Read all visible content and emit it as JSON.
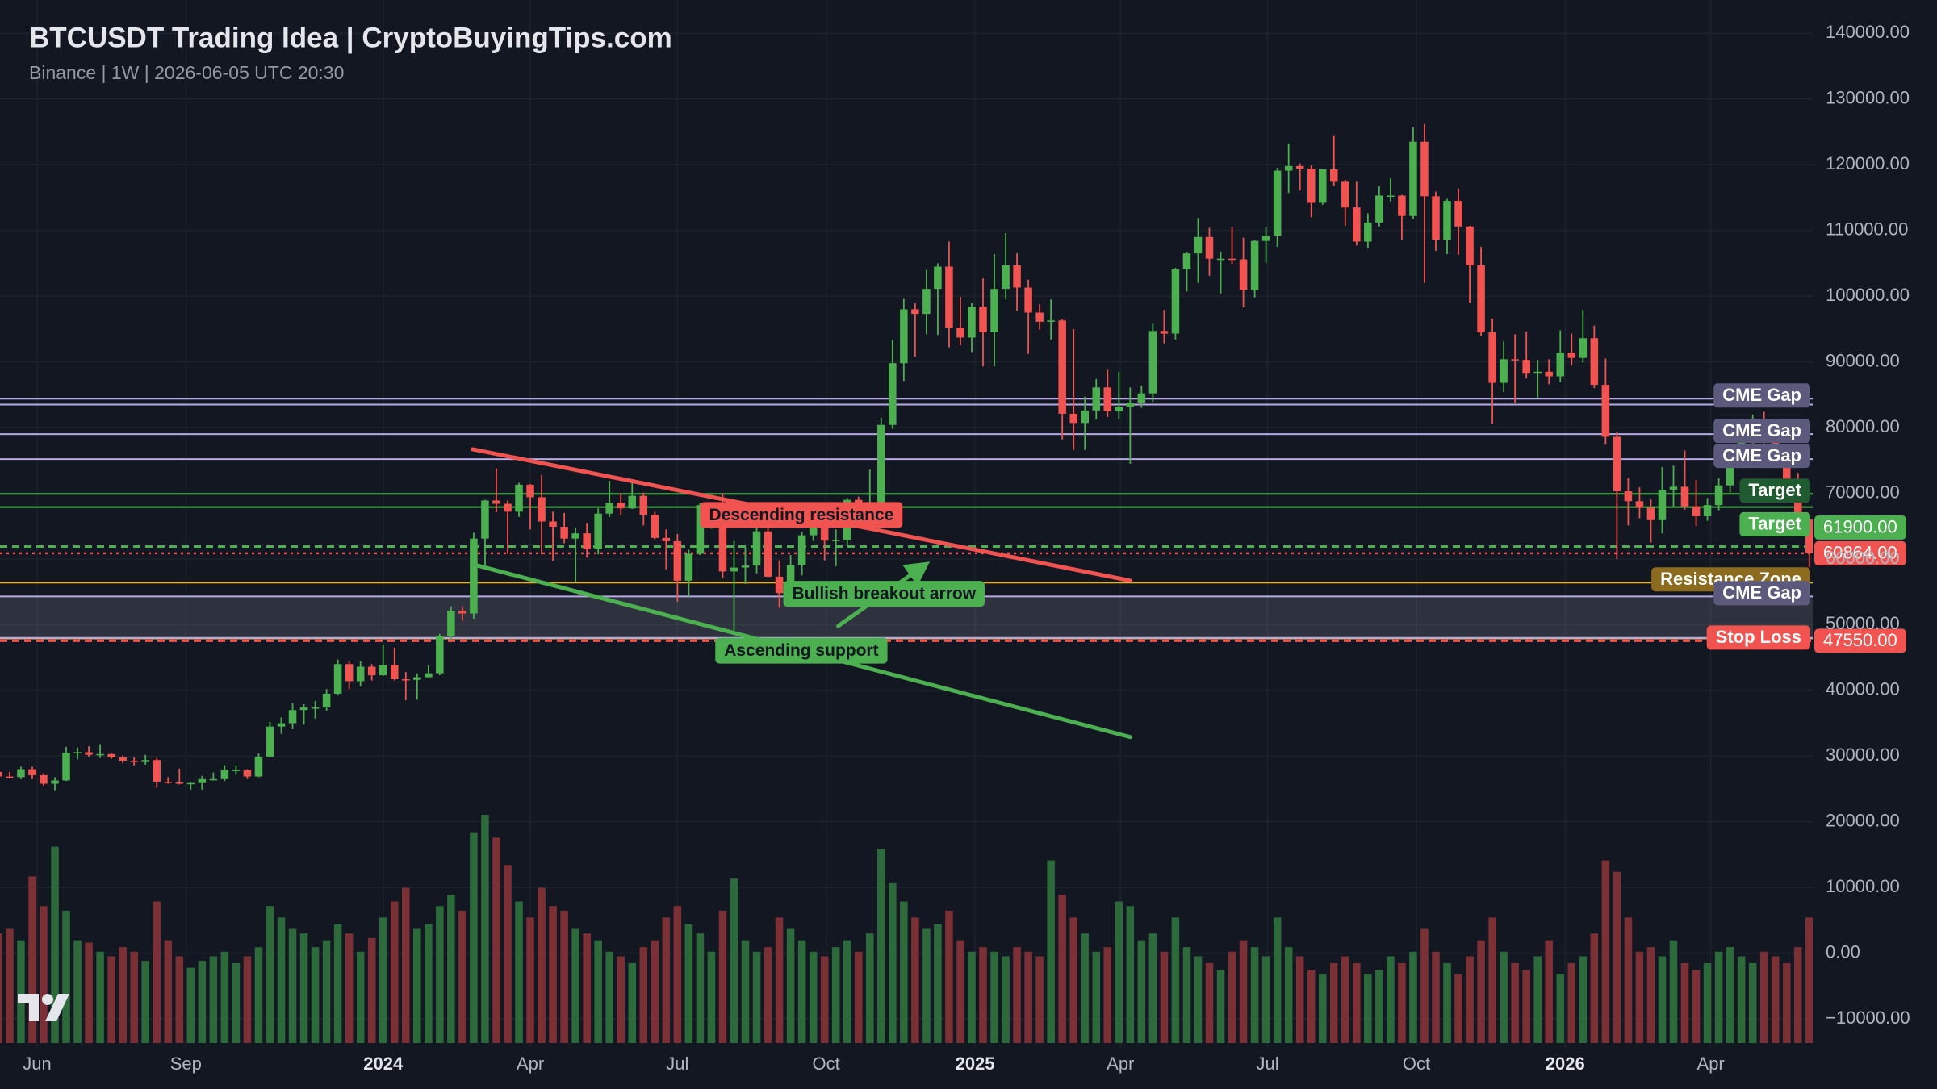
{
  "chart_data": {
    "type": "candlestick",
    "title": "BTCUSDT Trading Idea | CryptoBuyingTips.com",
    "subtitle": "Binance | 1W | 2026-06-05 UTC 20:30",
    "up_color": "#4caf50",
    "down_color": "#f05350",
    "volume_up_color": "#2c6a3c",
    "volume_down_color": "#7a3034",
    "grid": true,
    "xlim": [
      0.15,
      160.3
    ],
    "xticks": [
      {
        "value": 3.43,
        "label": "Jun"
      },
      {
        "value": 16.57,
        "label": "Sep"
      },
      {
        "value": 34.0,
        "label": "2024"
      },
      {
        "value": 47.0,
        "label": "Apr"
      },
      {
        "value": 60.0,
        "label": "Jul"
      },
      {
        "value": 73.14,
        "label": "Oct"
      },
      {
        "value": 86.29,
        "label": "2025"
      },
      {
        "value": 99.14,
        "label": "Apr"
      },
      {
        "value": 112.14,
        "label": "Jul"
      },
      {
        "value": 125.29,
        "label": "Oct"
      },
      {
        "value": 138.43,
        "label": "2026"
      },
      {
        "value": 151.29,
        "label": "Apr"
      }
    ],
    "ylim": [
      -14280,
      145070
    ],
    "yticks": [
      {
        "value": 140000,
        "label": "140000.00"
      },
      {
        "value": 130000,
        "label": "130000.00"
      },
      {
        "value": 120000,
        "label": "120000.00"
      },
      {
        "value": 110000,
        "label": "110000.00"
      },
      {
        "value": 100000,
        "label": "100000.00"
      },
      {
        "value": 90000,
        "label": "90000.00"
      },
      {
        "value": 80000,
        "label": "80000.00"
      },
      {
        "value": 70000,
        "label": "70000.00"
      },
      {
        "value": 60000,
        "label": "60000.00"
      },
      {
        "value": 50000,
        "label": "50000.00"
      },
      {
        "value": 40000,
        "label": "40000.00"
      },
      {
        "value": 30000,
        "label": "30000.00"
      },
      {
        "value": 20000,
        "label": "20000.00"
      },
      {
        "value": 10000,
        "label": "10000.00"
      },
      {
        "value": 0,
        "label": "0.00"
      },
      {
        "value": -10000,
        "label": "−10000.00"
      }
    ],
    "candles": [
      [
        27600,
        28000,
        25800,
        26900
      ],
      [
        26900,
        27600,
        26600,
        26800
      ],
      [
        26800,
        28400,
        26500,
        28000
      ],
      [
        28000,
        28400,
        26500,
        27100
      ],
      [
        27100,
        27400,
        25400,
        25800
      ],
      [
        25800,
        26800,
        24800,
        26300
      ],
      [
        26300,
        31400,
        26200,
        30500
      ],
      [
        30500,
        31300,
        29500,
        30600
      ],
      [
        30600,
        31500,
        29900,
        30200
      ],
      [
        30200,
        31800,
        29700,
        30300
      ],
      [
        30300,
        30400,
        29600,
        29800
      ],
      [
        29800,
        30100,
        28900,
        29300
      ],
      [
        29300,
        29800,
        28600,
        29100
      ],
      [
        29100,
        30200,
        28700,
        29400
      ],
      [
        29400,
        29700,
        25200,
        26100
      ],
      [
        26100,
        26800,
        25800,
        26000
      ],
      [
        26000,
        28100,
        25700,
        25800
      ],
      [
        25800,
        26100,
        24900,
        25900
      ],
      [
        25900,
        27000,
        24900,
        26500
      ],
      [
        26500,
        27500,
        26300,
        26500
      ],
      [
        26500,
        28600,
        26200,
        27900
      ],
      [
        27900,
        28600,
        27200,
        27900
      ],
      [
        27900,
        28000,
        26500,
        26900
      ],
      [
        26900,
        30400,
        26800,
        29900
      ],
      [
        29900,
        35200,
        29800,
        34500
      ],
      [
        34500,
        35900,
        33400,
        35000
      ],
      [
        35000,
        38000,
        34100,
        37000
      ],
      [
        37000,
        37900,
        34800,
        37400
      ],
      [
        37400,
        38400,
        35700,
        37400
      ],
      [
        37400,
        40200,
        36900,
        39500
      ],
      [
        39500,
        44700,
        39300,
        44000
      ],
      [
        44000,
        44400,
        40200,
        41400
      ],
      [
        41400,
        44400,
        40600,
        43600
      ],
      [
        43600,
        44000,
        41500,
        42300
      ],
      [
        42300,
        47000,
        42200,
        43900
      ],
      [
        43900,
        46500,
        41500,
        41700
      ],
      [
        41700,
        42800,
        38500,
        41600
      ],
      [
        41600,
        42600,
        38600,
        42000
      ],
      [
        42000,
        43800,
        41900,
        42600
      ],
      [
        42600,
        48600,
        42300,
        48300
      ],
      [
        48300,
        52800,
        47700,
        52100
      ],
      [
        52100,
        52800,
        50600,
        51700
      ],
      [
        51700,
        64000,
        50900,
        63100
      ],
      [
        63100,
        69000,
        59000,
        68900
      ],
      [
        68900,
        73800,
        67100,
        68400
      ],
      [
        68400,
        68900,
        60800,
        67200
      ],
      [
        67200,
        71600,
        66400,
        71300
      ],
      [
        71300,
        71400,
        64500,
        69400
      ],
      [
        69400,
        72800,
        60700,
        65700
      ],
      [
        65700,
        67200,
        59700,
        64900
      ],
      [
        64900,
        67000,
        62400,
        63100
      ],
      [
        63100,
        64800,
        56500,
        63900
      ],
      [
        63900,
        65500,
        60200,
        61500
      ],
      [
        61500,
        67700,
        60700,
        66900
      ],
      [
        66900,
        71900,
        66400,
        68500
      ],
      [
        68500,
        70000,
        66700,
        67700
      ],
      [
        67700,
        71900,
        67600,
        69600
      ],
      [
        69600,
        70100,
        65100,
        66700
      ],
      [
        66700,
        67200,
        63000,
        63200
      ],
      [
        63200,
        64500,
        58400,
        62700
      ],
      [
        62700,
        63800,
        53500,
        56700
      ],
      [
        56700,
        61400,
        54300,
        60800
      ],
      [
        60800,
        68500,
        60600,
        68200
      ],
      [
        68200,
        68500,
        64600,
        68200
      ],
      [
        68200,
        70000,
        57100,
        58100
      ],
      [
        58100,
        62700,
        49100,
        58700
      ],
      [
        58700,
        61800,
        56200,
        59000
      ],
      [
        59000,
        65000,
        57800,
        64200
      ],
      [
        64200,
        64900,
        57200,
        57300
      ],
      [
        57300,
        59800,
        52600,
        54800
      ],
      [
        54800,
        60600,
        53600,
        59100
      ],
      [
        59100,
        64100,
        57500,
        63600
      ],
      [
        63600,
        66500,
        62700,
        65600
      ],
      [
        65600,
        66000,
        59800,
        62800
      ],
      [
        62800,
        64500,
        58900,
        62900
      ],
      [
        62900,
        69300,
        62000,
        69000
      ],
      [
        69000,
        69500,
        65100,
        68000
      ],
      [
        68000,
        73600,
        67500,
        68200
      ],
      [
        68200,
        81500,
        66800,
        80400
      ],
      [
        80400,
        93400,
        79800,
        89800
      ],
      [
        89800,
        99600,
        87100,
        98000
      ],
      [
        98000,
        98900,
        90800,
        97300
      ],
      [
        97300,
        104000,
        94200,
        101100
      ],
      [
        101100,
        105000,
        94100,
        104500
      ],
      [
        104500,
        108300,
        92200,
        95200
      ],
      [
        95200,
        99900,
        92500,
        93700
      ],
      [
        93700,
        98900,
        91500,
        98400
      ],
      [
        98400,
        102700,
        89300,
        94500
      ],
      [
        94500,
        106400,
        89300,
        101100
      ],
      [
        101100,
        109600,
        99500,
        104700
      ],
      [
        104700,
        106500,
        97800,
        101300
      ],
      [
        101300,
        102500,
        91200,
        97500
      ],
      [
        97500,
        98800,
        94900,
        96100
      ],
      [
        96100,
        99500,
        93400,
        96300
      ],
      [
        96300,
        96500,
        78200,
        82100
      ],
      [
        82100,
        95000,
        76600,
        80700
      ],
      [
        80700,
        84700,
        76600,
        82600
      ],
      [
        82600,
        87400,
        81200,
        86100
      ],
      [
        86100,
        88800,
        81600,
        82500
      ],
      [
        82500,
        88500,
        81300,
        83200
      ],
      [
        83200,
        86100,
        74500,
        83800
      ],
      [
        83800,
        86400,
        83000,
        85200
      ],
      [
        85200,
        95800,
        83900,
        94700
      ],
      [
        94700,
        97900,
        92800,
        94300
      ],
      [
        94300,
        104300,
        93400,
        104100
      ],
      [
        104100,
        106700,
        100700,
        106500
      ],
      [
        106500,
        111900,
        102000,
        109000
      ],
      [
        109000,
        110400,
        103100,
        105700
      ],
      [
        105700,
        106800,
        100400,
        105700
      ],
      [
        105700,
        110500,
        104900,
        105600
      ],
      [
        105600,
        108900,
        98300,
        100900
      ],
      [
        100900,
        108500,
        99800,
        108400
      ],
      [
        108400,
        110500,
        105100,
        109200
      ],
      [
        109200,
        119500,
        107500,
        119100
      ],
      [
        119100,
        123200,
        115700,
        119800
      ],
      [
        119800,
        120200,
        116100,
        119400
      ],
      [
        119400,
        119900,
        112000,
        114200
      ],
      [
        114200,
        119300,
        113900,
        119300
      ],
      [
        119300,
        124500,
        116800,
        117400
      ],
      [
        117400,
        117700,
        110700,
        113500
      ],
      [
        113500,
        117400,
        107700,
        108300
      ],
      [
        108300,
        112600,
        107300,
        111200
      ],
      [
        111200,
        116700,
        110600,
        115300
      ],
      [
        115300,
        117900,
        114400,
        115300
      ],
      [
        115300,
        115400,
        108600,
        112200
      ],
      [
        112200,
        125700,
        111700,
        123500
      ],
      [
        123500,
        126200,
        102000,
        115200
      ],
      [
        115200,
        115900,
        106900,
        108600
      ],
      [
        108600,
        114800,
        106400,
        114500
      ],
      [
        114500,
        116400,
        106300,
        110600
      ],
      [
        110600,
        110700,
        98900,
        104700
      ],
      [
        104700,
        107500,
        94000,
        94500
      ],
      [
        94500,
        96600,
        80600,
        86800
      ],
      [
        86800,
        93100,
        85400,
        90400
      ],
      [
        90400,
        94200,
        83800,
        90300
      ],
      [
        90300,
        94600,
        87500,
        88200
      ],
      [
        88200,
        90300,
        84400,
        88500
      ],
      [
        88500,
        90400,
        86600,
        87800
      ],
      [
        87800,
        94800,
        86900,
        91400
      ],
      [
        91400,
        94300,
        89400,
        90600
      ],
      [
        90600,
        97900,
        89900,
        93600
      ],
      [
        93600,
        95500,
        86000,
        86500
      ],
      [
        86500,
        90500,
        77400,
        78600
      ],
      [
        78600,
        79300,
        60000,
        70300
      ],
      [
        70300,
        72300,
        65100,
        68800
      ],
      [
        68800,
        70900,
        66200,
        67800
      ],
      [
        67800,
        69100,
        62500,
        65900
      ],
      [
        65900,
        74000,
        63900,
        70500
      ],
      [
        70500,
        74200,
        68000,
        71000
      ],
      [
        71000,
        76500,
        67500,
        68000
      ],
      [
        68000,
        72000,
        65000,
        66500
      ],
      [
        66500,
        69300,
        65800,
        68200
      ],
      [
        68200,
        72300,
        67400,
        71200
      ],
      [
        71200,
        75500,
        70100,
        75000
      ],
      [
        75000,
        78600,
        74100,
        77800
      ],
      [
        77800,
        82000,
        76500,
        80500
      ],
      [
        80500,
        82400,
        77600,
        79000
      ],
      [
        79000,
        80200,
        74800,
        76000
      ],
      [
        76000,
        77200,
        70900,
        72000
      ],
      [
        72000,
        73100,
        64800,
        66000
      ],
      [
        66000,
        66800,
        58700,
        60864
      ]
    ],
    "volume": [
      48,
      50,
      45,
      73,
      60,
      86,
      58,
      45,
      44,
      40,
      38,
      42,
      40,
      36,
      62,
      45,
      38,
      33,
      36,
      38,
      40,
      35,
      38,
      42,
      60,
      55,
      50,
      48,
      42,
      45,
      52,
      48,
      40,
      46,
      55,
      62,
      68,
      50,
      52,
      60,
      65,
      58,
      92,
      100,
      90,
      78,
      62,
      55,
      68,
      60,
      58,
      50,
      48,
      45,
      40,
      38,
      35,
      42,
      45,
      55,
      60,
      52,
      48,
      40,
      58,
      72,
      45,
      40,
      42,
      55,
      50,
      45,
      40,
      38,
      42,
      45,
      40,
      48,
      85,
      70,
      62,
      55,
      50,
      52,
      58,
      45,
      40,
      42,
      40,
      38,
      42,
      40,
      38,
      80,
      65,
      55,
      48,
      40,
      42,
      62,
      60,
      45,
      48,
      40,
      55,
      42,
      38,
      35,
      32,
      40,
      45,
      42,
      38,
      55,
      42,
      38,
      32,
      30,
      35,
      38,
      35,
      30,
      32,
      38,
      35,
      40,
      50,
      40,
      35,
      30,
      38,
      45,
      55,
      40,
      35,
      32,
      38,
      45,
      30,
      35,
      38,
      48,
      80,
      75,
      55,
      40,
      42,
      38,
      45,
      35,
      32,
      35,
      40,
      42,
      38,
      35,
      40,
      38,
      35,
      42,
      55
    ],
    "levels": [
      {
        "label": "CME Gap",
        "value": 84400,
        "low": 83500,
        "color": "#b7a9e6",
        "label_color": "#5c5a7c"
      },
      {
        "label": "CME Gap",
        "value": 79000,
        "color": "#b7a9e6",
        "label_color": "#5c5a7c"
      },
      {
        "label": "CME Gap",
        "value": 75200,
        "color": "#b7a9e6",
        "label_color": "#5c5a7c"
      },
      {
        "label": "Target",
        "value": 69900,
        "low": 67900,
        "color": "#4caf50",
        "label_color": "#1f5a30"
      },
      {
        "label": "Target",
        "value": 61900,
        "price_label": "61900.00",
        "color": "#4caf50",
        "label_color": "#4caf50",
        "dashed": true
      },
      {
        "label": "Resistance Zone",
        "value": 56400,
        "low": 47900,
        "color": "#e8b62a",
        "label_color": "#8c6a1e"
      },
      {
        "label": "CME Gap",
        "value": 54300,
        "low": 48000,
        "color": "#b7a9e6",
        "label_color": "#5c5a7c",
        "shade": true
      },
      {
        "label": "Stop Loss",
        "value": 47550,
        "price_label": "47550.00",
        "color": "#f05350",
        "label_color": "#f05350",
        "dashed": true
      }
    ],
    "last_price": {
      "value": 60864,
      "label": "60864.00",
      "color": "#f05350"
    },
    "trendlines": [
      {
        "label": "Descending resistance",
        "color": "#f05350",
        "x": [
          41.9,
          100.0
        ],
        "y": [
          76700,
          56700
        ]
      },
      {
        "label": "Ascending support",
        "color": "#4caf50",
        "x": [
          41.9,
          100.0
        ],
        "y": [
          59200,
          32900
        ]
      },
      {
        "label": "Bullish breakout arrow",
        "color": "#4caf50",
        "x": [
          74.2,
          82.3
        ],
        "y": [
          49800,
          59600
        ],
        "arrow": true
      }
    ]
  }
}
